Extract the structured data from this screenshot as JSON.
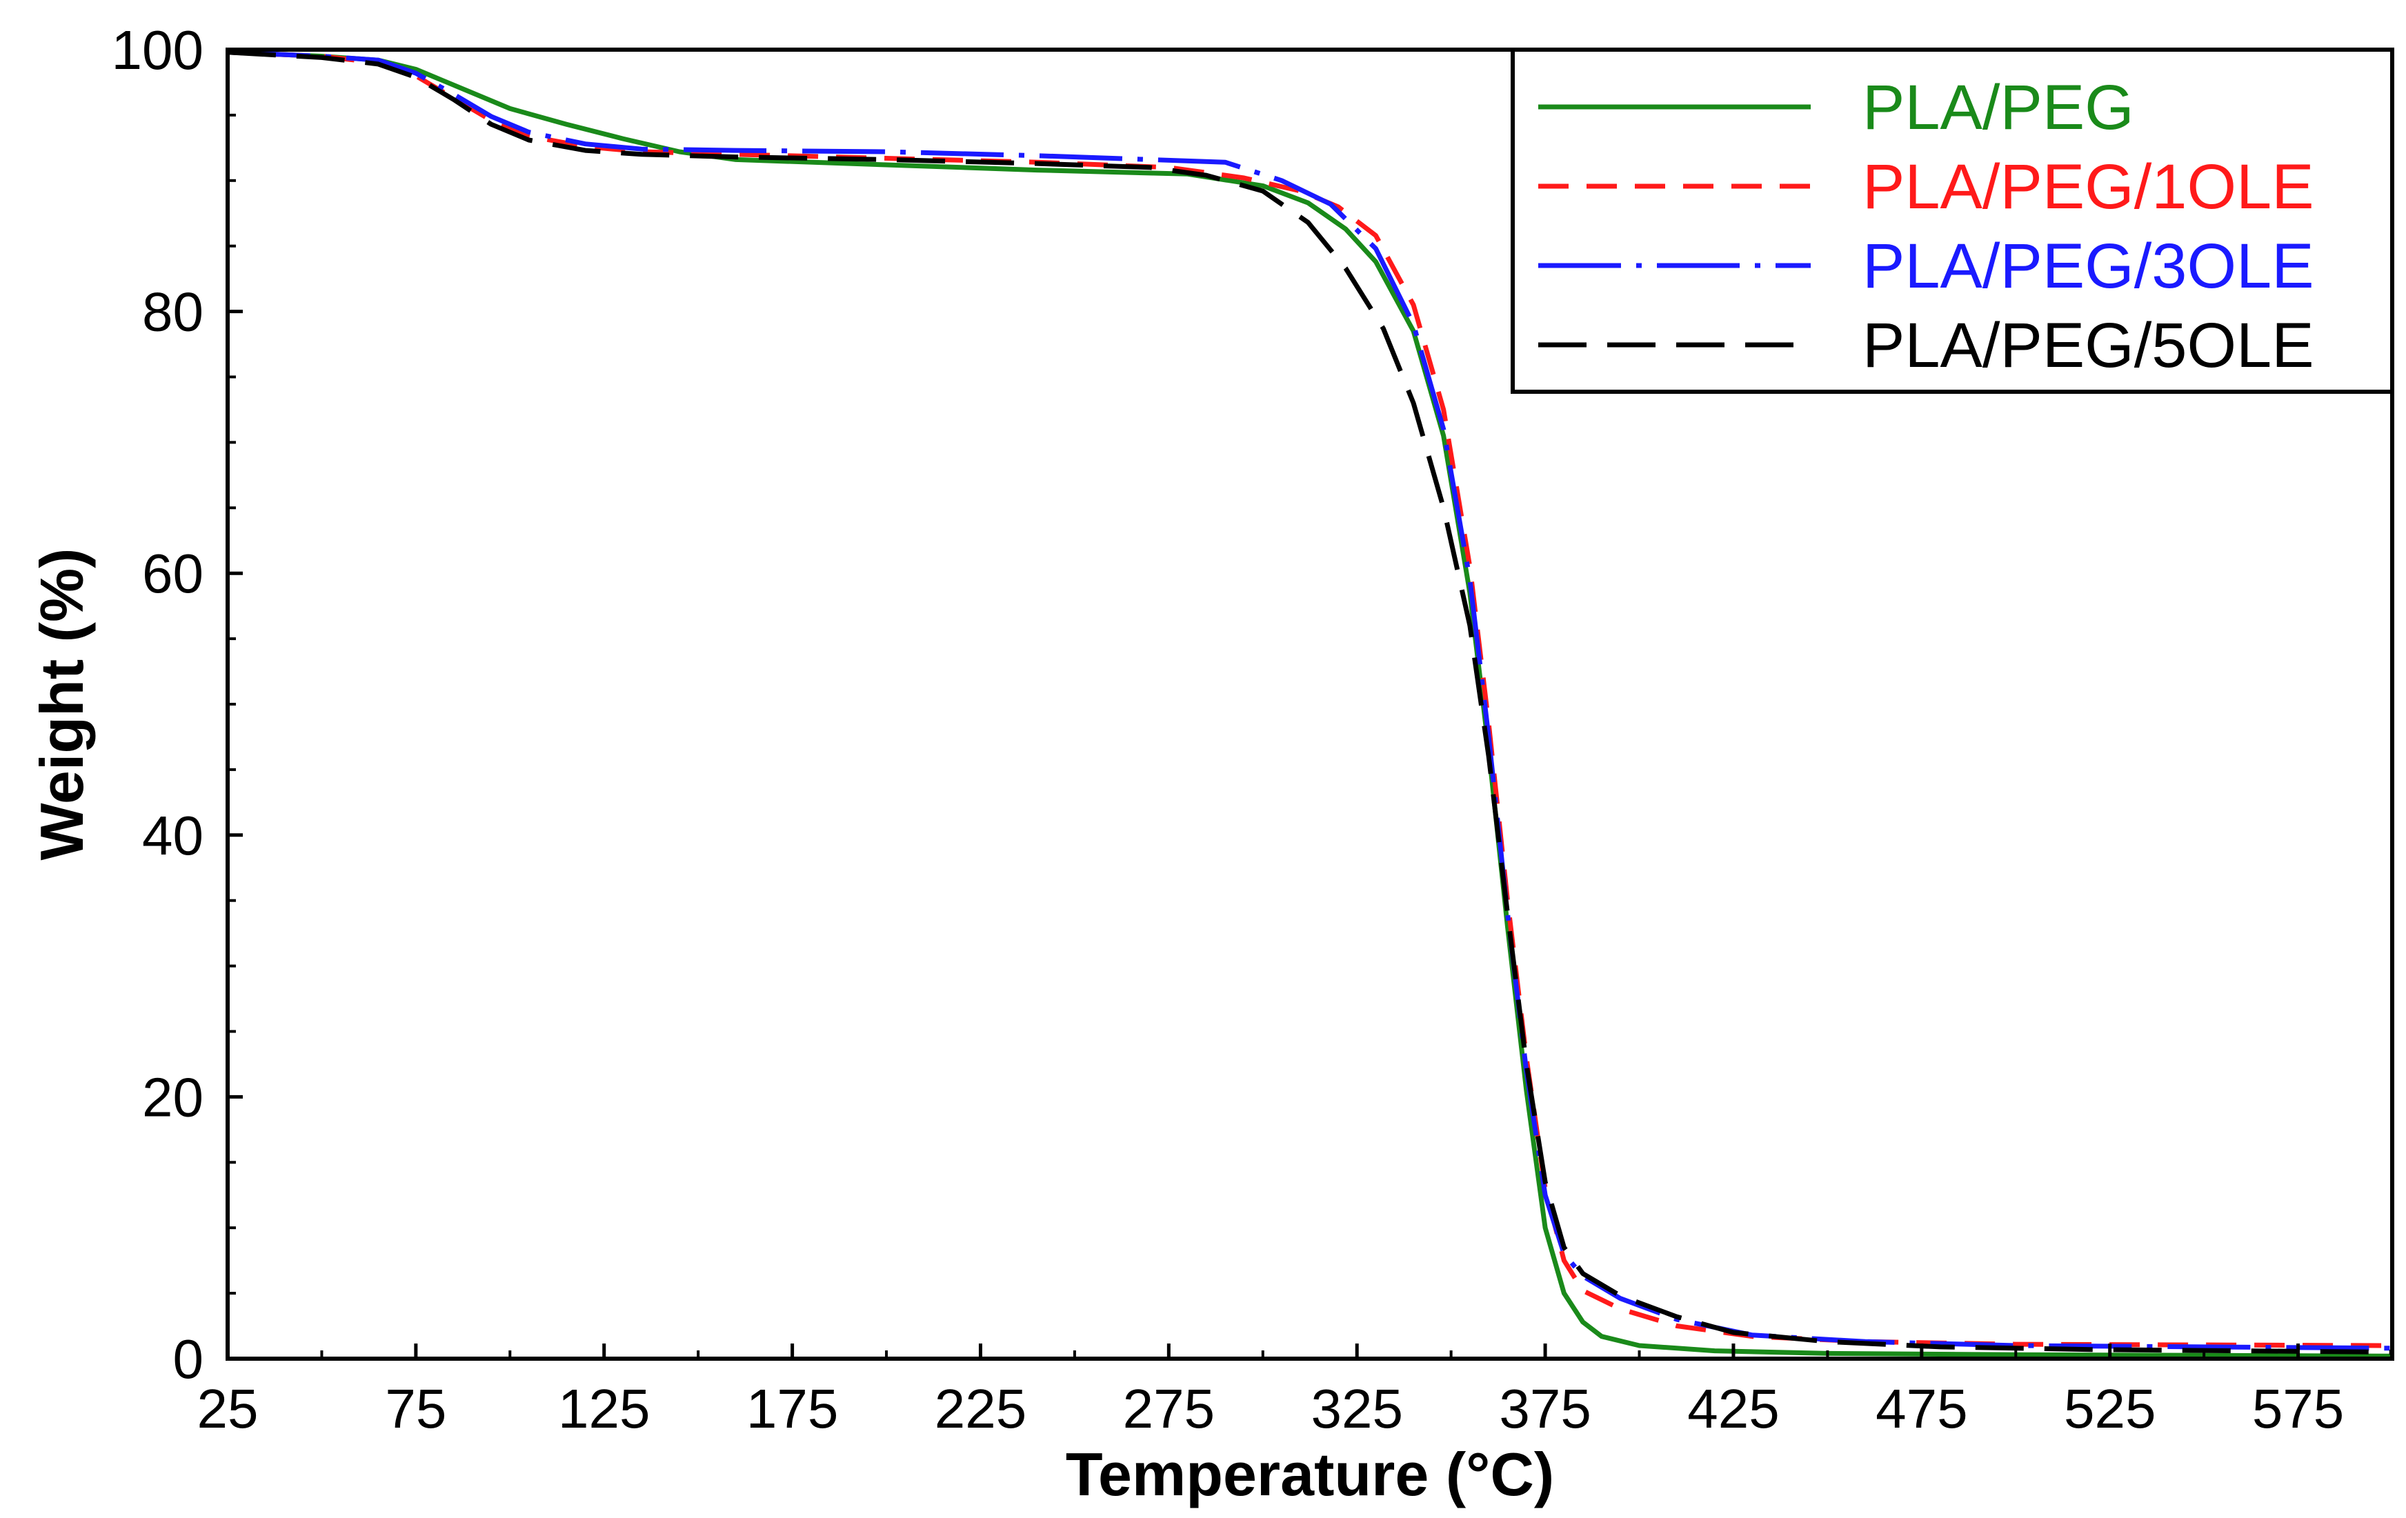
{
  "chart_data": {
    "type": "line",
    "xlabel": "Temperature (°C)",
    "ylabel": "Weight (%)",
    "xlim": [
      25,
      600
    ],
    "ylim": [
      0,
      100
    ],
    "x_ticks": [
      25,
      75,
      125,
      175,
      225,
      275,
      325,
      375,
      425,
      475,
      525,
      575
    ],
    "x_tick_labels": [
      "25",
      "75",
      "125",
      "175",
      "225",
      "275",
      "325",
      "375",
      "425",
      "475",
      "525",
      "575"
    ],
    "y_ticks": [
      0,
      20,
      40,
      60,
      80,
      100
    ],
    "y_tick_labels": [
      "0",
      "20",
      "40",
      "60",
      "80",
      "100"
    ],
    "grid": false,
    "legend_position": "top-right",
    "series": [
      {
        "name": "PLA/PEG",
        "color": "#1a8a1a",
        "dash": "solid",
        "points": [
          [
            25,
            99.8
          ],
          [
            50,
            99.5
          ],
          [
            65,
            99.2
          ],
          [
            75,
            98.5
          ],
          [
            85,
            97.3
          ],
          [
            100,
            95.5
          ],
          [
            115,
            94.3
          ],
          [
            130,
            93.2
          ],
          [
            145,
            92.2
          ],
          [
            160,
            91.6
          ],
          [
            200,
            91.2
          ],
          [
            240,
            90.8
          ],
          [
            280,
            90.5
          ],
          [
            300,
            89.6
          ],
          [
            312,
            88.3
          ],
          [
            322,
            86.3
          ],
          [
            330,
            83.8
          ],
          [
            340,
            78.5
          ],
          [
            348,
            70.5
          ],
          [
            355,
            58.5
          ],
          [
            360,
            46.5
          ],
          [
            365,
            33
          ],
          [
            370,
            20.5
          ],
          [
            375,
            10
          ],
          [
            380,
            5
          ],
          [
            385,
            2.8
          ],
          [
            390,
            1.7
          ],
          [
            400,
            1.0
          ],
          [
            420,
            0.6
          ],
          [
            450,
            0.4
          ],
          [
            500,
            0.3
          ],
          [
            600,
            0.2
          ]
        ]
      },
      {
        "name": "PLA/PEG/1OLE",
        "color": "#ff1a1a",
        "dash": "dashed",
        "points": [
          [
            25,
            99.8
          ],
          [
            50,
            99.5
          ],
          [
            65,
            99
          ],
          [
            75,
            98
          ],
          [
            85,
            96.3
          ],
          [
            95,
            94.6
          ],
          [
            105,
            93.4
          ],
          [
            120,
            92.6
          ],
          [
            135,
            92.2
          ],
          [
            160,
            92
          ],
          [
            200,
            91.7
          ],
          [
            240,
            91.4
          ],
          [
            275,
            91
          ],
          [
            295,
            90.2
          ],
          [
            310,
            89.2
          ],
          [
            320,
            88
          ],
          [
            330,
            85.8
          ],
          [
            340,
            80.5
          ],
          [
            348,
            72.5
          ],
          [
            355,
            60.5
          ],
          [
            360,
            48.5
          ],
          [
            365,
            35
          ],
          [
            370,
            23
          ],
          [
            375,
            13
          ],
          [
            380,
            7.5
          ],
          [
            385,
            5.2
          ],
          [
            395,
            3.8
          ],
          [
            410,
            2.5
          ],
          [
            430,
            1.7
          ],
          [
            460,
            1.3
          ],
          [
            500,
            1.1
          ],
          [
            600,
            1.0
          ]
        ]
      },
      {
        "name": "PLA/PEG/3OLE",
        "color": "#1a1aff",
        "dash": "dashdot",
        "points": [
          [
            25,
            99.8
          ],
          [
            50,
            99.5
          ],
          [
            65,
            99.2
          ],
          [
            75,
            98.2
          ],
          [
            85,
            96.6
          ],
          [
            95,
            94.9
          ],
          [
            105,
            93.7
          ],
          [
            120,
            92.8
          ],
          [
            135,
            92.4
          ],
          [
            160,
            92.3
          ],
          [
            200,
            92.2
          ],
          [
            240,
            91.9
          ],
          [
            270,
            91.6
          ],
          [
            290,
            91.4
          ],
          [
            305,
            90
          ],
          [
            318,
            88.2
          ],
          [
            330,
            84.8
          ],
          [
            340,
            79
          ],
          [
            348,
            71
          ],
          [
            355,
            59.5
          ],
          [
            360,
            47.5
          ],
          [
            365,
            34
          ],
          [
            370,
            22
          ],
          [
            375,
            12.5
          ],
          [
            380,
            8
          ],
          [
            385,
            6.3
          ],
          [
            395,
            4.6
          ],
          [
            410,
            3
          ],
          [
            430,
            1.8
          ],
          [
            460,
            1.3
          ],
          [
            500,
            1.0
          ],
          [
            600,
            0.8
          ]
        ]
      },
      {
        "name": "PLA/PEG/5OLE",
        "color": "#000000",
        "dash": "longdash",
        "points": [
          [
            25,
            99.8
          ],
          [
            50,
            99.4
          ],
          [
            65,
            98.9
          ],
          [
            75,
            97.9
          ],
          [
            85,
            96.2
          ],
          [
            95,
            94.3
          ],
          [
            105,
            93.1
          ],
          [
            120,
            92.3
          ],
          [
            135,
            92
          ],
          [
            160,
            91.8
          ],
          [
            200,
            91.6
          ],
          [
            240,
            91.3
          ],
          [
            270,
            91
          ],
          [
            285,
            90.4
          ],
          [
            300,
            89.2
          ],
          [
            312,
            86.8
          ],
          [
            322,
            83.3
          ],
          [
            332,
            78.7
          ],
          [
            340,
            73
          ],
          [
            348,
            65
          ],
          [
            355,
            56
          ],
          [
            360,
            46
          ],
          [
            365,
            34
          ],
          [
            370,
            22.5
          ],
          [
            375,
            13.5
          ],
          [
            380,
            8.5
          ],
          [
            385,
            6.5
          ],
          [
            395,
            4.8
          ],
          [
            410,
            3.2
          ],
          [
            425,
            2.0
          ],
          [
            450,
            1.3
          ],
          [
            480,
            0.9
          ],
          [
            520,
            0.7
          ],
          [
            600,
            0.5
          ]
        ]
      }
    ]
  }
}
